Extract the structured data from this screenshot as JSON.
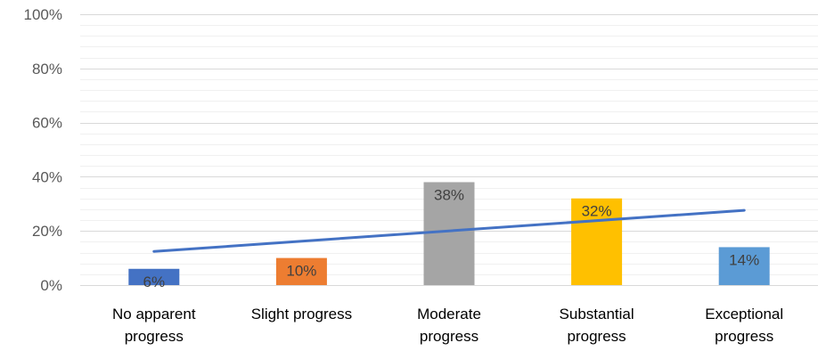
{
  "chart_data": {
    "type": "bar",
    "categories": [
      [
        "No apparent",
        "progress"
      ],
      [
        "Slight progress"
      ],
      [
        "Moderate",
        "progress"
      ],
      [
        "Substantial",
        "progress"
      ],
      [
        "Exceptional",
        "progress"
      ]
    ],
    "values": [
      6,
      10,
      38,
      32,
      14
    ],
    "data_labels": [
      "6%",
      "10%",
      "38%",
      "32%",
      "14%"
    ],
    "bar_colors": [
      "#4472c4",
      "#ed7d31",
      "#a5a5a5",
      "#ffc000",
      "#5b9bd5"
    ],
    "ylim": [
      0,
      100
    ],
    "yticks": [
      0,
      20,
      40,
      60,
      80,
      100
    ],
    "ytick_labels": [
      "0%",
      "20%",
      "40%",
      "60%",
      "80%",
      "100%"
    ],
    "minor_step": 4,
    "trendline": {
      "type": "linear",
      "color": "#4472c4"
    },
    "grid": true,
    "legend": "none"
  }
}
